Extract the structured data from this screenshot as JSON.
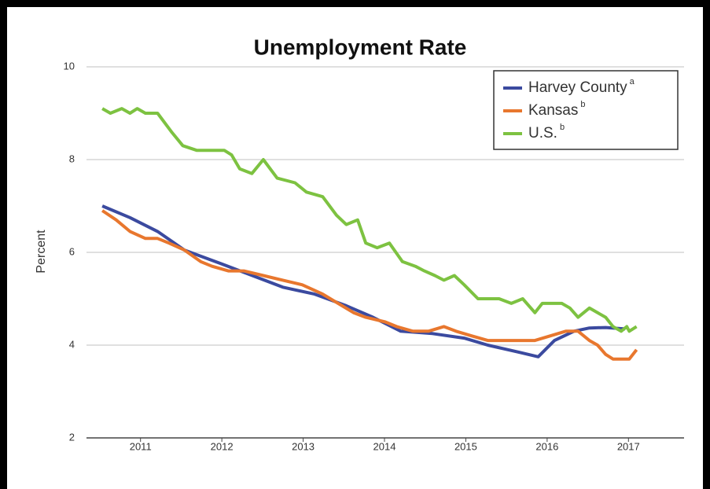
{
  "chart_data": {
    "type": "line",
    "title": "Unemployment Rate",
    "y_label": "Percent",
    "ylim": [
      2,
      10
    ],
    "yticks": [
      2,
      4,
      6,
      8,
      10
    ],
    "grid": true,
    "xlim": [
      2011,
      2018
    ],
    "xticks": [
      {
        "value": 2011.5,
        "label": "2011"
      },
      {
        "value": 2012.5,
        "label": "2012"
      },
      {
        "value": 2013.5,
        "label": "2013"
      },
      {
        "value": 2014.5,
        "label": "2014"
      },
      {
        "value": 2015.5,
        "label": "2015"
      },
      {
        "value": 2016.5,
        "label": "2016"
      },
      {
        "value": 2017.5,
        "label": "2017"
      }
    ],
    "legend": "top-right",
    "series": [
      {
        "name": "Harvey County",
        "footnote": "a",
        "color": "#3b4a9f",
        "x": [
          2011.03,
          2011.37,
          2011.71,
          2012.04,
          2012.5,
          2013.25,
          2013.64,
          2014.03,
          2014.36,
          2014.7,
          2015.09,
          2015.48,
          2015.77,
          2016.15,
          2016.39,
          2016.59,
          2016.83,
          2017.02,
          2017.22,
          2017.46
        ],
        "values": [
          7.0,
          6.75,
          6.45,
          6.05,
          5.75,
          5.25,
          5.1,
          4.85,
          4.6,
          4.3,
          4.25,
          4.15,
          4.0,
          3.85,
          3.75,
          4.1,
          4.3,
          4.37,
          4.38,
          4.35
        ]
      },
      {
        "name": "Kansas",
        "footnote": "b",
        "color": "#e8772e",
        "x": [
          2011.03,
          2011.2,
          2011.37,
          2011.56,
          2011.71,
          2011.85,
          2012.04,
          2012.24,
          2012.38,
          2012.58,
          2012.77,
          2013.01,
          2013.25,
          2013.49,
          2013.74,
          2013.93,
          2014.12,
          2014.27,
          2014.51,
          2014.65,
          2014.85,
          2015.04,
          2015.23,
          2015.38,
          2015.57,
          2015.77,
          2016.06,
          2016.35,
          2016.54,
          2016.73,
          2016.88,
          2017.02,
          2017.12,
          2017.22,
          2017.31,
          2017.51,
          2017.6
        ],
        "values": [
          6.9,
          6.7,
          6.45,
          6.3,
          6.3,
          6.2,
          6.05,
          5.8,
          5.7,
          5.6,
          5.6,
          5.5,
          5.4,
          5.3,
          5.1,
          4.9,
          4.7,
          4.6,
          4.5,
          4.4,
          4.3,
          4.3,
          4.4,
          4.3,
          4.2,
          4.1,
          4.1,
          4.1,
          4.2,
          4.3,
          4.3,
          4.1,
          4.0,
          3.8,
          3.7,
          3.7,
          3.9
        ]
      },
      {
        "name": "U.S.",
        "footnote": "b",
        "color": "#7dc241",
        "x": [
          2011.03,
          2011.13,
          2011.27,
          2011.37,
          2011.46,
          2011.56,
          2011.71,
          2011.88,
          2012.02,
          2012.19,
          2012.53,
          2012.62,
          2012.72,
          2012.87,
          2013.01,
          2013.18,
          2013.4,
          2013.54,
          2013.74,
          2013.91,
          2014.03,
          2014.17,
          2014.27,
          2014.41,
          2014.56,
          2014.72,
          2014.88,
          2014.99,
          2015.12,
          2015.23,
          2015.36,
          2015.48,
          2015.65,
          2015.91,
          2016.06,
          2016.2,
          2016.35,
          2016.44,
          2016.68,
          2016.78,
          2016.88,
          2017.02,
          2017.22,
          2017.31,
          2017.41,
          2017.48,
          2017.51,
          2017.6
        ],
        "values": [
          9.1,
          9.0,
          9.1,
          9.0,
          9.1,
          9.0,
          9.0,
          8.6,
          8.3,
          8.2,
          8.2,
          8.1,
          7.8,
          7.7,
          8.0,
          7.6,
          7.5,
          7.3,
          7.2,
          6.8,
          6.6,
          6.7,
          6.2,
          6.1,
          6.2,
          5.8,
          5.7,
          5.6,
          5.5,
          5.4,
          5.5,
          5.3,
          5.0,
          5.0,
          4.9,
          5.0,
          4.7,
          4.9,
          4.9,
          4.8,
          4.6,
          4.8,
          4.6,
          4.4,
          4.3,
          4.4,
          4.3,
          4.4
        ]
      }
    ]
  }
}
